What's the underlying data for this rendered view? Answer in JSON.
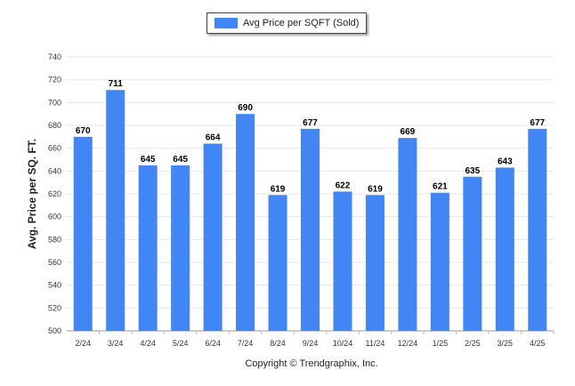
{
  "legend": {
    "label": "Avg Price per SQFT (Sold)",
    "swatch_color": "#4285f4"
  },
  "copyright": "Copyright © Trendgraphix, Inc.",
  "chart_data": {
    "type": "bar",
    "categories": [
      "2/24",
      "3/24",
      "4/24",
      "5/24",
      "6/24",
      "7/24",
      "8/24",
      "9/24",
      "10/24",
      "11/24",
      "12/24",
      "1/25",
      "2/25",
      "3/25",
      "4/25"
    ],
    "series": [
      {
        "name": "Avg Price per SQFT (Sold)",
        "values": [
          670,
          711,
          645,
          645,
          664,
          690,
          619,
          677,
          622,
          619,
          669,
          621,
          635,
          643,
          677
        ]
      }
    ],
    "ylabel": "Avg. Price per SQ. FT.",
    "xlabel": "",
    "ylim": [
      500,
      740
    ],
    "yticks": [
      500,
      520,
      540,
      560,
      580,
      600,
      620,
      640,
      660,
      680,
      700,
      720,
      740
    ],
    "grid": true,
    "legend_position": "top-center",
    "bar_color": "#4285f4",
    "data_labels": true
  }
}
